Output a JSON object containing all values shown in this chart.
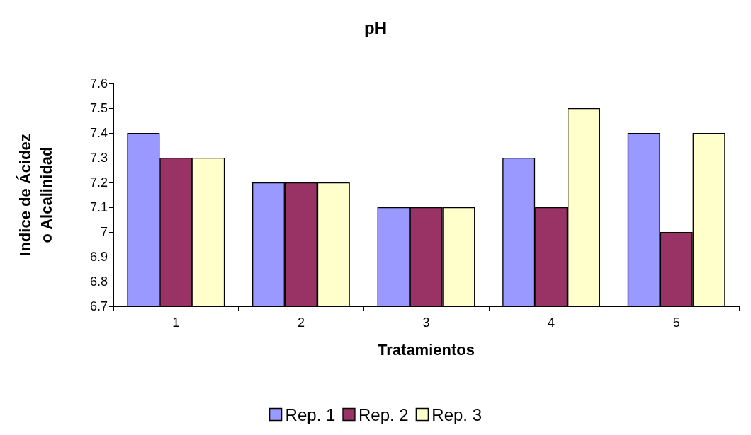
{
  "chart_data": {
    "type": "bar",
    "title": "pH",
    "xlabel": "Tratamientos",
    "ylabel": "Indice de Ácidez o Alcalinidad",
    "categories": [
      "1",
      "2",
      "3",
      "4",
      "5"
    ],
    "series": [
      {
        "name": "Rep. 1",
        "color": "#9999ff",
        "values": [
          7.4,
          7.2,
          7.1,
          7.3,
          7.4
        ]
      },
      {
        "name": "Rep. 2",
        "color": "#993366",
        "values": [
          7.3,
          7.2,
          7.1,
          7.1,
          7.0
        ]
      },
      {
        "name": "Rep. 3",
        "color": "#ffffcc",
        "values": [
          7.3,
          7.2,
          7.1,
          7.5,
          7.4
        ]
      }
    ],
    "ylim": [
      6.7,
      7.6
    ],
    "yticks": [
      6.7,
      6.8,
      6.9,
      7,
      7.1,
      7.2,
      7.3,
      7.4,
      7.5,
      7.6
    ],
    "grid": false,
    "legend": "bottom"
  }
}
